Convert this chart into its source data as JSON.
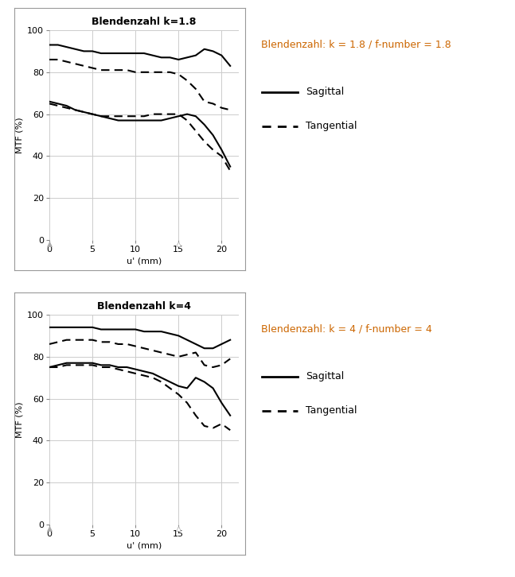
{
  "chart1": {
    "title": "Blendenzahl k=1.8",
    "legend_title": "Blendenzahl: k = 1.8 / f-number = 1.8",
    "curves": {
      "s1": [
        93,
        93,
        92,
        91,
        90,
        90,
        89,
        89,
        89,
        89,
        89,
        89,
        88,
        87,
        87,
        86,
        87,
        88,
        91,
        90,
        88,
        83
      ],
      "t1": [
        86,
        86,
        85,
        84,
        83,
        82,
        81,
        81,
        81,
        81,
        80,
        80,
        80,
        80,
        80,
        79,
        76,
        72,
        66,
        65,
        63,
        62
      ],
      "s2": [
        66,
        65,
        64,
        62,
        61,
        60,
        59,
        58,
        57,
        57,
        57,
        57,
        57,
        57,
        58,
        59,
        60,
        59,
        55,
        50,
        43,
        35
      ],
      "t2": [
        65,
        64,
        63,
        62,
        61,
        60,
        59,
        59,
        59,
        59,
        59,
        59,
        60,
        60,
        60,
        60,
        57,
        52,
        47,
        43,
        40,
        33
      ]
    }
  },
  "chart2": {
    "title": "Blendenzahl k=4",
    "legend_title": "Blendenzahl: k = 4 / f-number = 4",
    "curves": {
      "s1": [
        94,
        94,
        94,
        94,
        94,
        94,
        93,
        93,
        93,
        93,
        93,
        92,
        92,
        92,
        91,
        90,
        88,
        86,
        84,
        84,
        86,
        88
      ],
      "t1": [
        86,
        87,
        88,
        88,
        88,
        88,
        87,
        87,
        86,
        86,
        85,
        84,
        83,
        82,
        81,
        80,
        81,
        82,
        76,
        75,
        76,
        79
      ],
      "s2": [
        75,
        76,
        77,
        77,
        77,
        77,
        76,
        76,
        75,
        75,
        74,
        73,
        72,
        70,
        68,
        66,
        65,
        70,
        68,
        65,
        58,
        52
      ],
      "t2": [
        75,
        75,
        76,
        76,
        76,
        76,
        75,
        75,
        74,
        73,
        72,
        71,
        70,
        68,
        65,
        62,
        58,
        52,
        47,
        46,
        48,
        45
      ]
    }
  },
  "x_values": [
    0,
    1,
    2,
    3,
    4,
    5,
    6,
    7,
    8,
    9,
    10,
    11,
    12,
    13,
    14,
    15,
    16,
    17,
    18,
    19,
    20,
    21
  ],
  "xlim": [
    0,
    22
  ],
  "ylim": [
    0,
    100
  ],
  "xlabel": "u' (mm)",
  "ylabel": "MTF (%)",
  "xticks": [
    0,
    5,
    10,
    15,
    20
  ],
  "yticks": [
    0,
    20,
    40,
    60,
    80,
    100
  ],
  "grid_color": "#cccccc",
  "legend_title_color": "#cc6600",
  "sagittal_label": "Sagittal",
  "tangential_label": "Tangential",
  "bg_color": "#ffffff",
  "title_fontsize": 9,
  "label_fontsize": 8,
  "tick_fontsize": 8,
  "legend_title_fontsize": 9,
  "legend_fontsize": 9,
  "box_color": "#999999",
  "marker_color": "#aaaaaa"
}
